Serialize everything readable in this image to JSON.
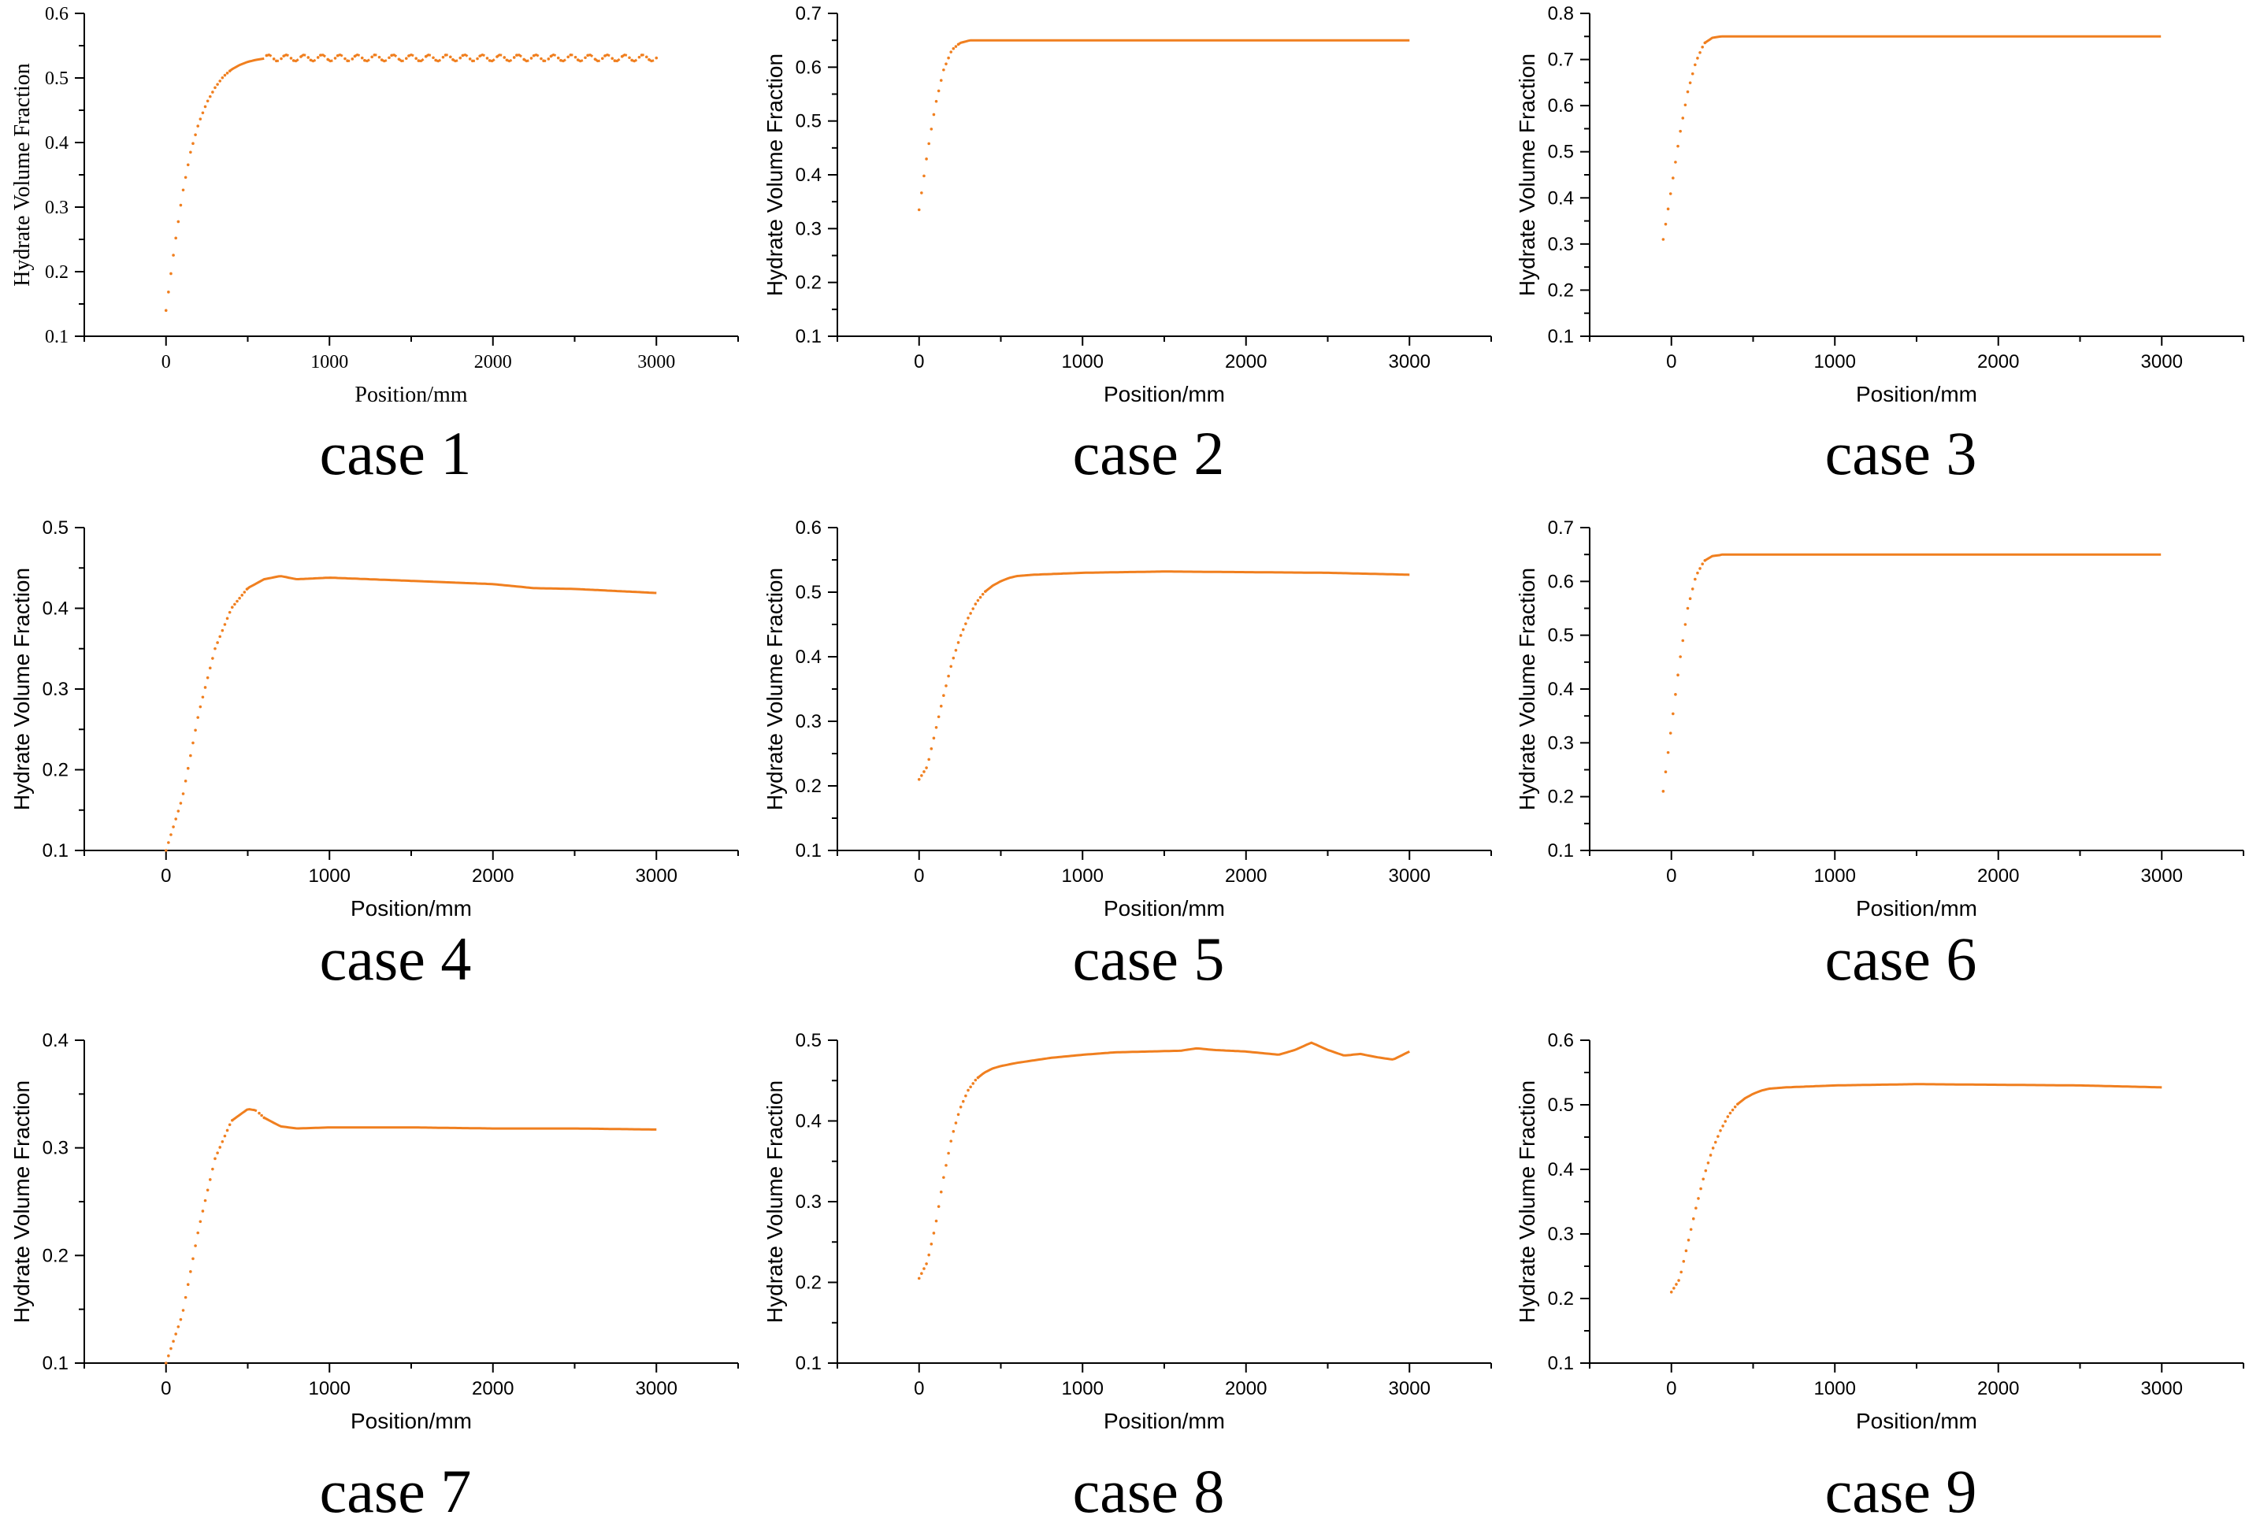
{
  "figure": {
    "series_color": "#f07f1f"
  },
  "chart_data": [
    {
      "type": "line",
      "case": "case 1",
      "font": "serif",
      "title": "",
      "xlabel": "Position/mm",
      "ylabel": "Hydrate Volume Fraction",
      "xlim": [
        -500,
        3500
      ],
      "ylim": [
        0.1,
        0.6
      ],
      "xticks": [
        0,
        1000,
        2000,
        3000
      ],
      "xtick_labels": [
        "0",
        "1000",
        "2000",
        "3000"
      ],
      "yticks": [
        0.1,
        0.2,
        0.3,
        0.4,
        0.5,
        0.6
      ],
      "ytick_labels": [
        "0.1",
        "0.2",
        "0.3",
        "0.4",
        "0.5",
        "0.6"
      ],
      "series": [
        {
          "name": "Hydrate Volume Fraction",
          "x": [
            0,
            50,
            100,
            150,
            200,
            250,
            300,
            350,
            400,
            450,
            500,
            550,
            600
          ],
          "y": [
            0.14,
            0.235,
            0.32,
            0.385,
            0.43,
            0.462,
            0.485,
            0.502,
            0.513,
            0.52,
            0.525,
            0.528,
            0.53
          ],
          "plateau": 0.531,
          "ripple": 0.005,
          "ripple_count": 22
        }
      ]
    },
    {
      "type": "line",
      "case": "case 2",
      "font": "sans",
      "title": "",
      "xlabel": "Position/mm",
      "ylabel": "Hydrate Volume Fraction",
      "xlim": [
        -500,
        3500
      ],
      "ylim": [
        0.1,
        0.7
      ],
      "xticks": [
        0,
        1000,
        2000,
        3000
      ],
      "xtick_labels": [
        "0",
        "1000",
        "2000",
        "3000"
      ],
      "yticks": [
        0.1,
        0.2,
        0.3,
        0.4,
        0.5,
        0.6,
        0.7
      ],
      "ytick_labels": [
        "0.1",
        "0.2",
        "0.3",
        "0.4",
        "0.5",
        "0.6",
        "0.7"
      ],
      "series": [
        {
          "name": "Hydrate Volume Fraction",
          "x": [
            0,
            50,
            100,
            150,
            200,
            250,
            300
          ],
          "y": [
            0.335,
            0.44,
            0.53,
            0.595,
            0.632,
            0.645,
            0.649
          ],
          "plateau": 0.65,
          "ripple": 0,
          "ripple_count": 0
        }
      ]
    },
    {
      "type": "line",
      "case": "case 3",
      "font": "sans",
      "title": "",
      "xlabel": "Position/mm",
      "ylabel": "Hydrate Volume Fraction",
      "xlim": [
        -500,
        3500
      ],
      "ylim": [
        0.1,
        0.8
      ],
      "xticks": [
        0,
        1000,
        2000,
        3000
      ],
      "xtick_labels": [
        "0",
        "1000",
        "2000",
        "3000"
      ],
      "yticks": [
        0.1,
        0.2,
        0.3,
        0.4,
        0.5,
        0.6,
        0.7,
        0.8
      ],
      "ytick_labels": [
        "0.1",
        "0.2",
        "0.3",
        "0.4",
        "0.5",
        "0.6",
        "0.7",
        "0.8"
      ],
      "series": [
        {
          "name": "Hydrate Volume Fraction",
          "x": [
            -50,
            0,
            50,
            100,
            150,
            200,
            250,
            300
          ],
          "y": [
            0.31,
            0.42,
            0.535,
            0.63,
            0.695,
            0.735,
            0.747,
            0.75
          ],
          "plateau": 0.75,
          "ripple": 0,
          "ripple_count": 0
        }
      ]
    },
    {
      "type": "line",
      "case": "case 4",
      "font": "sans",
      "title": "",
      "xlabel": "Position/mm",
      "ylabel": "Hydrate Volume Fraction",
      "xlim": [
        -500,
        3500
      ],
      "ylim": [
        0.1,
        0.5
      ],
      "xticks": [
        0,
        1000,
        2000,
        3000
      ],
      "xtick_labels": [
        "0",
        "1000",
        "2000",
        "3000"
      ],
      "yticks": [
        0.1,
        0.2,
        0.3,
        0.4,
        0.5
      ],
      "ytick_labels": [
        "0.1",
        "0.2",
        "0.3",
        "0.4",
        "0.5"
      ],
      "series": [
        {
          "name": "Hydrate Volume Fraction",
          "x": [
            0,
            100,
            200,
            300,
            400,
            500,
            600,
            700,
            800,
            1000,
            1500,
            2000,
            2250,
            2500,
            3000
          ],
          "y": [
            0.1,
            0.165,
            0.27,
            0.35,
            0.4,
            0.425,
            0.436,
            0.44,
            0.436,
            0.438,
            0.434,
            0.43,
            0.425,
            0.424,
            0.419
          ],
          "plateau": 0,
          "ripple": 0,
          "ripple_count": 0
        }
      ]
    },
    {
      "type": "line",
      "case": "case 5",
      "font": "sans",
      "title": "",
      "xlabel": "Position/mm",
      "ylabel": "Hydrate Volume Fraction",
      "xlim": [
        -500,
        3500
      ],
      "ylim": [
        0.1,
        0.6
      ],
      "xticks": [
        0,
        1000,
        2000,
        3000
      ],
      "xtick_labels": [
        "0",
        "1000",
        "2000",
        "3000"
      ],
      "yticks": [
        0.1,
        0.2,
        0.3,
        0.4,
        0.5,
        0.6
      ],
      "ytick_labels": [
        "0.1",
        "0.2",
        "0.3",
        "0.4",
        "0.5",
        "0.6"
      ],
      "series": [
        {
          "name": "Hydrate Volume Fraction",
          "x": [
            0,
            50,
            100,
            150,
            200,
            250,
            300,
            350,
            400,
            450,
            500,
            550,
            600,
            700,
            800,
            900,
            1000,
            1500,
            2000,
            2500,
            3000
          ],
          "y": [
            0.21,
            0.23,
            0.285,
            0.34,
            0.39,
            0.43,
            0.46,
            0.484,
            0.5,
            0.51,
            0.517,
            0.522,
            0.525,
            0.527,
            0.528,
            0.529,
            0.53,
            0.532,
            0.531,
            0.53,
            0.527
          ],
          "plateau": 0,
          "ripple": 0,
          "ripple_count": 0
        }
      ]
    },
    {
      "type": "line",
      "case": "case 6",
      "font": "sans",
      "title": "",
      "xlabel": "Position/mm",
      "ylabel": "Hydrate Volume Fraction",
      "xlim": [
        -500,
        3500
      ],
      "ylim": [
        0.1,
        0.7
      ],
      "xticks": [
        0,
        1000,
        2000,
        3000
      ],
      "xtick_labels": [
        "0",
        "1000",
        "2000",
        "3000"
      ],
      "yticks": [
        0.1,
        0.2,
        0.3,
        0.4,
        0.5,
        0.6,
        0.7
      ],
      "ytick_labels": [
        "0.1",
        "0.2",
        "0.3",
        "0.4",
        "0.5",
        "0.6",
        "0.7"
      ],
      "series": [
        {
          "name": "Hydrate Volume Fraction",
          "x": [
            -50,
            0,
            50,
            100,
            150,
            200,
            250,
            300
          ],
          "y": [
            0.21,
            0.33,
            0.45,
            0.55,
            0.61,
            0.638,
            0.647,
            0.649
          ],
          "plateau": 0.65,
          "ripple": 0,
          "ripple_count": 0
        }
      ]
    },
    {
      "type": "line",
      "case": "case 7",
      "font": "sans",
      "title": "",
      "xlabel": "Position/mm",
      "ylabel": "Hydrate Volume Fraction",
      "xlim": [
        -500,
        3500
      ],
      "ylim": [
        0.1,
        0.4
      ],
      "xticks": [
        0,
        1000,
        2000,
        3000
      ],
      "xtick_labels": [
        "0",
        "1000",
        "2000",
        "3000"
      ],
      "yticks": [
        0.1,
        0.2,
        0.3,
        0.4
      ],
      "ytick_labels": [
        "0.1",
        "0.2",
        "0.3",
        "0.4"
      ],
      "series": [
        {
          "name": "Hydrate Volume Fraction",
          "x": [
            0,
            100,
            200,
            300,
            400,
            500,
            550,
            600,
            700,
            800,
            1000,
            1500,
            2000,
            2500,
            3000
          ],
          "y": [
            0.1,
            0.145,
            0.225,
            0.29,
            0.325,
            0.336,
            0.335,
            0.328,
            0.32,
            0.318,
            0.319,
            0.319,
            0.318,
            0.318,
            0.317
          ],
          "plateau": 0,
          "ripple": 0,
          "ripple_count": 0
        }
      ]
    },
    {
      "type": "line",
      "case": "case 8",
      "font": "sans",
      "title": "",
      "xlabel": "Position/mm",
      "ylabel": "Hydrate Volume Fraction",
      "xlim": [
        -500,
        3500
      ],
      "ylim": [
        0.1,
        0.5
      ],
      "xticks": [
        0,
        1000,
        2000,
        3000
      ],
      "xtick_labels": [
        "0",
        "1000",
        "2000",
        "3000"
      ],
      "yticks": [
        0.1,
        0.2,
        0.3,
        0.4,
        0.5
      ],
      "ytick_labels": [
        "0.1",
        "0.2",
        "0.3",
        "0.4",
        "0.5"
      ],
      "series": [
        {
          "name": "Hydrate Volume Fraction",
          "x": [
            0,
            50,
            100,
            150,
            200,
            250,
            300,
            350,
            400,
            450,
            500,
            600,
            700,
            800,
            900,
            1000,
            1200,
            1400,
            1600,
            1700,
            1800,
            2000,
            2200,
            2300,
            2400,
            2500,
            2600,
            2700,
            2800,
            2900,
            3000
          ],
          "y": [
            0.205,
            0.225,
            0.27,
            0.33,
            0.38,
            0.415,
            0.438,
            0.452,
            0.46,
            0.465,
            0.468,
            0.472,
            0.475,
            0.478,
            0.48,
            0.482,
            0.485,
            0.486,
            0.487,
            0.49,
            0.488,
            0.486,
            0.482,
            0.488,
            0.497,
            0.488,
            0.481,
            0.483,
            0.479,
            0.476,
            0.486
          ],
          "plateau": 0,
          "ripple": 0,
          "ripple_count": 0
        }
      ]
    },
    {
      "type": "line",
      "case": "case 9",
      "font": "sans",
      "title": "",
      "xlabel": "Position/mm",
      "ylabel": "Hydrate Volume Fraction",
      "xlim": [
        -500,
        3500
      ],
      "ylim": [
        0.1,
        0.6
      ],
      "xticks": [
        0,
        1000,
        2000,
        3000
      ],
      "xtick_labels": [
        "0",
        "1000",
        "2000",
        "3000"
      ],
      "yticks": [
        0.1,
        0.2,
        0.3,
        0.4,
        0.5,
        0.6
      ],
      "ytick_labels": [
        "0.1",
        "0.2",
        "0.3",
        "0.4",
        "0.5",
        "0.6"
      ],
      "series": [
        {
          "name": "Hydrate Volume Fraction",
          "x": [
            0,
            50,
            100,
            150,
            200,
            250,
            300,
            350,
            400,
            450,
            500,
            550,
            600,
            700,
            800,
            900,
            1000,
            1500,
            2000,
            2500,
            3000
          ],
          "y": [
            0.21,
            0.23,
            0.285,
            0.34,
            0.39,
            0.43,
            0.46,
            0.484,
            0.5,
            0.51,
            0.517,
            0.522,
            0.525,
            0.527,
            0.528,
            0.529,
            0.53,
            0.532,
            0.531,
            0.53,
            0.527
          ],
          "plateau": 0,
          "ripple": 0,
          "ripple_count": 0
        }
      ]
    }
  ]
}
